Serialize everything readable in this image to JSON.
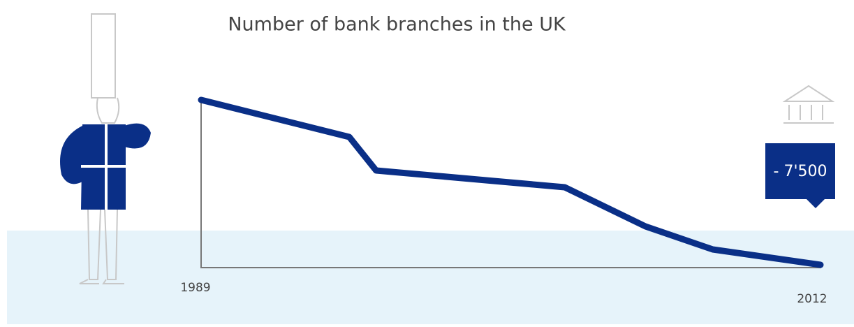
{
  "chart_data": {
    "type": "line",
    "title": "Number of bank branches in the UK",
    "x": [
      1989,
      1994.5,
      1995.5,
      2002.5,
      2005.5,
      2008,
      2012
    ],
    "values": [
      7627,
      5943,
      4417,
      3655,
      1875,
      826,
      127
    ],
    "color": "#0a2f87",
    "xlim": [
      1989,
      2012
    ],
    "xticks": [
      1989,
      2012
    ],
    "ylim": [
      0,
      7700
    ],
    "annotation": "- 7'500"
  }
}
